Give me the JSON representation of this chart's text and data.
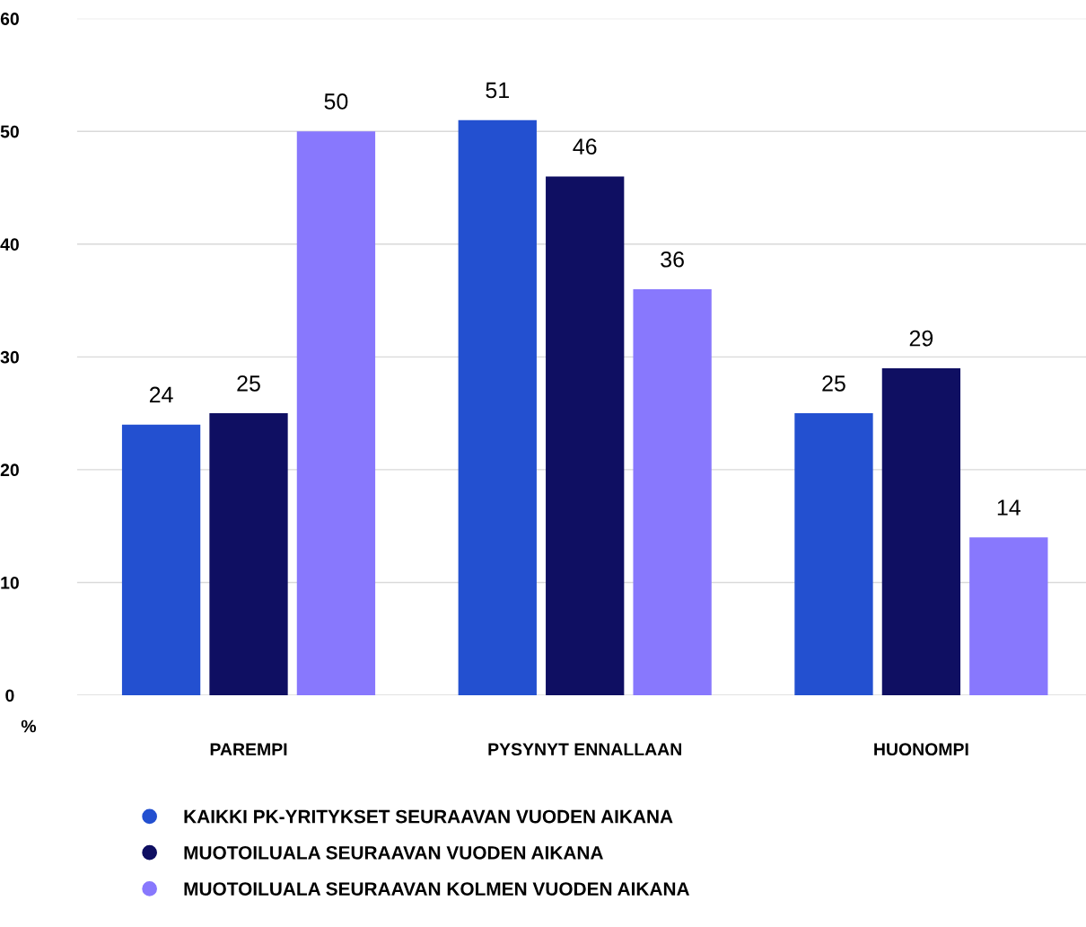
{
  "chart_data": {
    "type": "bar",
    "ylabel": "%",
    "categories": [
      "PAREMPI",
      "PYSYNYT ENNALLAAN",
      "HUONOMPI"
    ],
    "series": [
      {
        "name": "KAIKKI PK-YRITYKSET SEURAAVAN VUODEN AIKANA",
        "color": "#2350d0",
        "values": [
          24,
          51,
          25
        ]
      },
      {
        "name": "MUOTOILUALA SEURAAVAN VUODEN AIKANA",
        "color": "#0f0f62",
        "values": [
          25,
          46,
          29
        ]
      },
      {
        "name": "MUOTOILUALA SEURAAVAN KOLMEN VUODEN AIKANA",
        "color": "#8878fd",
        "values": [
          50,
          36,
          14
        ]
      }
    ],
    "ylim": [
      0,
      60
    ],
    "yticks": [
      0,
      10,
      20,
      30,
      40,
      50,
      60
    ],
    "grid": "y",
    "legend": "bottom",
    "data_labels": true
  }
}
